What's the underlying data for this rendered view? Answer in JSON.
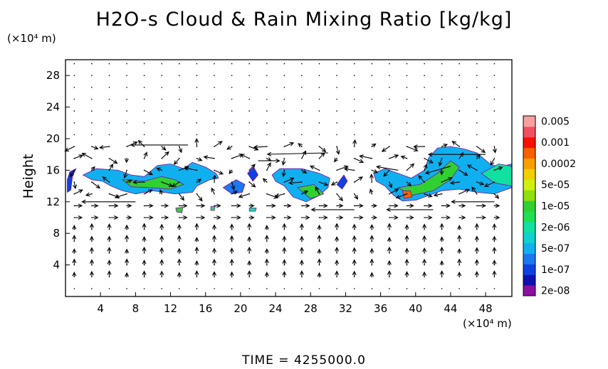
{
  "chart_data": {
    "type": "heatmap",
    "title": "H2O-s Cloud & Rain Mixing Ratio [kg/kg]",
    "ylabel": "Height",
    "y_unit": "(×10⁴ m)",
    "x_unit": "(×10⁴ m)",
    "footer": "TIME  =  4255000.0",
    "xlim": [
      0,
      51
    ],
    "ylim": [
      0,
      30
    ],
    "x_ticks": [
      4,
      8,
      12,
      16,
      20,
      24,
      28,
      32,
      36,
      40,
      44,
      48
    ],
    "y_ticks": [
      4,
      8,
      12,
      16,
      20,
      24,
      28
    ],
    "overlay": "wind vectors",
    "colorbar": [
      {
        "label": "2e-08",
        "color": "#8a10a0"
      },
      {
        "label": "",
        "color": "#1010b0"
      },
      {
        "label": "1e-07",
        "color": "#1040e0"
      },
      {
        "label": "",
        "color": "#1a78f0"
      },
      {
        "label": "5e-07",
        "color": "#10b0f0"
      },
      {
        "label": "",
        "color": "#10d0d0"
      },
      {
        "label": "2e-06",
        "color": "#10e0a0"
      },
      {
        "label": "",
        "color": "#20e050"
      },
      {
        "label": "1e-05",
        "color": "#30d030"
      },
      {
        "label": "",
        "color": "#90e010"
      },
      {
        "label": "5e-05",
        "color": "#d0f010"
      },
      {
        "label": "",
        "color": "#f0d000"
      },
      {
        "label": "0.0002",
        "color": "#f8a000"
      },
      {
        "label": "",
        "color": "#f86000"
      },
      {
        "label": "0.001",
        "color": "#f81000"
      },
      {
        "label": "",
        "color": "#f05060"
      },
      {
        "label": "0.005",
        "color": "#f8a0a0"
      }
    ],
    "cloud_regions": [
      {
        "name": "cloud-a",
        "level": 2,
        "points": [
          [
            0.2,
            14.8
          ],
          [
            0.5,
            15.8
          ],
          [
            1.2,
            16.2
          ],
          [
            0.8,
            15.2
          ],
          [
            0.6,
            13.5
          ],
          [
            0.2,
            13.2
          ]
        ]
      },
      {
        "name": "cloud-b",
        "level": 4,
        "points": [
          [
            2,
            15.4
          ],
          [
            3.5,
            16.2
          ],
          [
            6,
            16.0
          ],
          [
            7.5,
            15.4
          ],
          [
            9,
            15.2
          ],
          [
            10.5,
            16.6
          ],
          [
            12,
            16.8
          ],
          [
            13.5,
            16.2
          ],
          [
            14.5,
            17.0
          ],
          [
            16,
            16.4
          ],
          [
            17.2,
            15.6
          ],
          [
            17.5,
            15.0
          ],
          [
            16.5,
            14.8
          ],
          [
            15,
            14.0
          ],
          [
            14.5,
            13.2
          ],
          [
            12.5,
            13.0
          ],
          [
            10,
            13.4
          ],
          [
            8,
            13.0
          ],
          [
            6.5,
            13.4
          ],
          [
            5.2,
            14.0
          ],
          [
            4.2,
            14.6
          ],
          [
            3,
            14.8
          ]
        ]
      },
      {
        "name": "cloud-b-core",
        "level": 8,
        "points": [
          [
            6.5,
            14.8
          ],
          [
            9,
            14.6
          ],
          [
            11,
            15.2
          ],
          [
            12.5,
            14.8
          ],
          [
            13.5,
            14.2
          ],
          [
            12,
            13.6
          ],
          [
            9.5,
            13.8
          ],
          [
            7.5,
            13.9
          ]
        ]
      },
      {
        "name": "cloud-c",
        "level": 3,
        "points": [
          [
            18,
            13.8
          ],
          [
            19.5,
            14.8
          ],
          [
            20.5,
            14.2
          ],
          [
            20.2,
            13.2
          ],
          [
            19,
            13.0
          ]
        ]
      },
      {
        "name": "cloud-d",
        "level": 2,
        "points": [
          [
            20.8,
            15.6
          ],
          [
            21.5,
            16.4
          ],
          [
            22,
            15.4
          ],
          [
            21.4,
            14.6
          ]
        ]
      },
      {
        "name": "cloud-e",
        "level": 4,
        "points": [
          [
            23.6,
            15.4
          ],
          [
            24.5,
            16.2
          ],
          [
            27,
            16.2
          ],
          [
            29,
            15.6
          ],
          [
            30.2,
            15.0
          ],
          [
            30,
            13.8
          ],
          [
            29,
            12.8
          ],
          [
            27.5,
            12.0
          ],
          [
            26,
            12.6
          ],
          [
            25,
            14.0
          ],
          [
            24,
            14.6
          ]
        ]
      },
      {
        "name": "cloud-e-core",
        "level": 8,
        "points": [
          [
            26.5,
            13.8
          ],
          [
            28.4,
            14.2
          ],
          [
            29.5,
            13.0
          ],
          [
            28,
            12.4
          ]
        ]
      },
      {
        "name": "cloud-f",
        "level": 2,
        "points": [
          [
            31,
            14.2
          ],
          [
            31.8,
            15.4
          ],
          [
            32.2,
            14.6
          ],
          [
            31.6,
            13.6
          ]
        ]
      },
      {
        "name": "cloud-g",
        "level": 4,
        "points": [
          [
            35.2,
            15.6
          ],
          [
            36.5,
            16.2
          ],
          [
            37.5,
            15.8
          ],
          [
            39.5,
            15.0
          ],
          [
            41,
            16.0
          ],
          [
            41.5,
            17.6
          ],
          [
            42.5,
            18.8
          ],
          [
            44,
            19.0
          ],
          [
            45.5,
            18.7
          ],
          [
            47,
            18.2
          ],
          [
            48.5,
            16.8
          ],
          [
            49.5,
            16.4
          ],
          [
            51,
            16.8
          ],
          [
            51,
            13.8
          ],
          [
            49,
            13.0
          ],
          [
            47,
            13.2
          ],
          [
            45,
            13.6
          ],
          [
            43,
            13.4
          ],
          [
            41.5,
            12.8
          ],
          [
            40,
            12.2
          ],
          [
            38.5,
            12.1
          ],
          [
            37.5,
            12.8
          ],
          [
            36.5,
            14.0
          ],
          [
            35.5,
            14.6
          ]
        ]
      },
      {
        "name": "cloud-g-core",
        "level": 8,
        "points": [
          [
            38,
            13.8
          ],
          [
            40.5,
            14.2
          ],
          [
            42.5,
            15.6
          ],
          [
            44,
            17.2
          ],
          [
            45,
            16.4
          ],
          [
            44,
            14.8
          ],
          [
            42,
            13.4
          ],
          [
            39.5,
            12.8
          ]
        ]
      },
      {
        "name": "cloud-g-peak",
        "level": 13,
        "points": [
          [
            38.5,
            13.4
          ],
          [
            39.4,
            13.4
          ],
          [
            39.6,
            12.6
          ],
          [
            38.7,
            12.4
          ]
        ]
      },
      {
        "name": "cloud-h",
        "level": 6,
        "points": [
          [
            47.5,
            15.6
          ],
          [
            49.5,
            16.8
          ],
          [
            51,
            16.5
          ],
          [
            51,
            14.0
          ],
          [
            49,
            14.4
          ]
        ]
      },
      {
        "name": "spot-1",
        "level": 8,
        "points": [
          [
            12.6,
            11.2
          ],
          [
            13.4,
            11.3
          ],
          [
            13.3,
            10.6
          ],
          [
            12.7,
            10.7
          ]
        ]
      },
      {
        "name": "spot-2",
        "level": 7,
        "points": [
          [
            16.6,
            11.4
          ],
          [
            17.1,
            11.4
          ],
          [
            17.0,
            10.9
          ],
          [
            16.6,
            10.9
          ]
        ]
      },
      {
        "name": "spot-3",
        "level": 6,
        "points": [
          [
            21.0,
            11.2
          ],
          [
            21.8,
            11.2
          ],
          [
            21.7,
            10.8
          ],
          [
            21.0,
            10.8
          ]
        ]
      }
    ]
  }
}
